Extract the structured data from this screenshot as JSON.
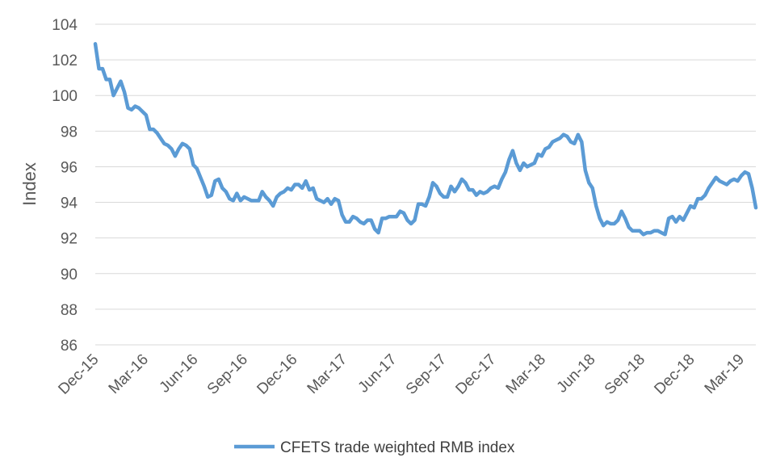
{
  "chart_data": {
    "type": "line",
    "title": "",
    "xlabel": "",
    "ylabel": "Index",
    "ylim": [
      86,
      104
    ],
    "yticks": [
      86,
      88,
      90,
      92,
      94,
      96,
      98,
      100,
      102,
      104
    ],
    "xticks": [
      "Dec-15",
      "Mar-16",
      "Jun-16",
      "Sep-16",
      "Dec-16",
      "Mar-17",
      "Jun-17",
      "Sep-17",
      "Dec-17",
      "Mar-18",
      "Jun-18",
      "Sep-18",
      "Dec-18",
      "Mar-19"
    ],
    "grid": true,
    "legend_position": "bottom",
    "colors": {
      "series": "#5b9bd5",
      "grid": "#d9d9d9",
      "text": "#595959"
    },
    "series": [
      {
        "name": "CFETS trade weighted RMB index",
        "values": [
          102.9,
          101.5,
          101.5,
          100.9,
          100.9,
          100.0,
          100.4,
          100.8,
          100.2,
          99.3,
          99.2,
          99.4,
          99.3,
          99.1,
          98.9,
          98.1,
          98.1,
          97.9,
          97.6,
          97.3,
          97.2,
          97.0,
          96.6,
          97.0,
          97.3,
          97.2,
          97.0,
          96.1,
          95.9,
          95.4,
          94.9,
          94.3,
          94.4,
          95.2,
          95.3,
          94.8,
          94.6,
          94.2,
          94.1,
          94.5,
          94.1,
          94.3,
          94.2,
          94.1,
          94.1,
          94.1,
          94.6,
          94.3,
          94.1,
          93.8,
          94.3,
          94.5,
          94.6,
          94.8,
          94.7,
          95.0,
          95.0,
          94.8,
          95.2,
          94.7,
          94.8,
          94.2,
          94.1,
          94.0,
          94.2,
          93.9,
          94.2,
          94.1,
          93.3,
          92.9,
          92.9,
          93.2,
          93.1,
          92.9,
          92.8,
          93.0,
          93.0,
          92.5,
          92.3,
          93.1,
          93.1,
          93.2,
          93.2,
          93.2,
          93.5,
          93.4,
          93.0,
          92.8,
          93.0,
          93.9,
          93.9,
          93.8,
          94.3,
          95.1,
          94.9,
          94.5,
          94.3,
          94.3,
          94.9,
          94.6,
          94.9,
          95.3,
          95.1,
          94.7,
          94.7,
          94.4,
          94.6,
          94.5,
          94.6,
          94.8,
          94.9,
          94.8,
          95.3,
          95.7,
          96.4,
          96.9,
          96.2,
          95.8,
          96.2,
          96.0,
          96.1,
          96.2,
          96.7,
          96.6,
          97.0,
          97.1,
          97.4,
          97.5,
          97.6,
          97.8,
          97.7,
          97.4,
          97.3,
          97.8,
          97.4,
          95.8,
          95.1,
          94.8,
          93.8,
          93.1,
          92.7,
          92.9,
          92.8,
          92.8,
          93.0,
          93.5,
          93.1,
          92.6,
          92.4,
          92.4,
          92.4,
          92.2,
          92.3,
          92.3,
          92.4,
          92.4,
          92.3,
          92.2,
          93.1,
          93.2,
          92.9,
          93.2,
          93.0,
          93.4,
          93.8,
          93.7,
          94.2,
          94.2,
          94.4,
          94.8,
          95.1,
          95.4,
          95.2,
          95.1,
          95.0,
          95.2,
          95.3,
          95.2,
          95.5,
          95.7,
          95.6,
          94.8,
          93.7
        ]
      }
    ]
  }
}
